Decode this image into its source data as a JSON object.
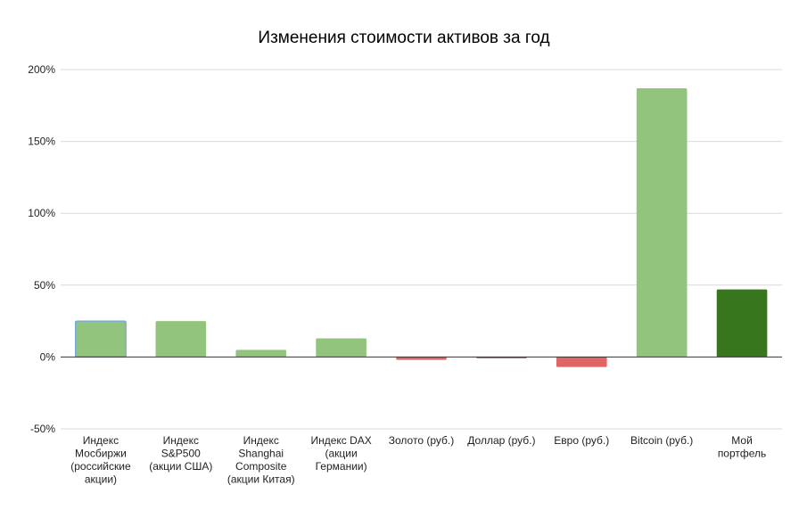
{
  "chart_data": {
    "type": "bar",
    "title": "Изменения стоимости активов за год",
    "xlabel": "",
    "ylabel": "",
    "ylim": [
      -50,
      200
    ],
    "yticks": [
      -50,
      0,
      50,
      100,
      150,
      200
    ],
    "ytick_labels": [
      "-50%",
      "0%",
      "50%",
      "100%",
      "150%",
      "200%"
    ],
    "grid": true,
    "legend": "none",
    "categories": [
      [
        "Индекс",
        "Мосбиржи",
        "(российские",
        "акции)"
      ],
      [
        "Индекс",
        "S&P500",
        "(акции США)"
      ],
      [
        "Индекс",
        "Shanghai",
        "Composite",
        "(акции Китая)"
      ],
      [
        "Индекс DAX",
        "(акции",
        "Германии)"
      ],
      [
        "Золото (руб.)"
      ],
      [
        "Доллар (руб.)"
      ],
      [
        "Евро (руб.)"
      ],
      [
        "Bitcoin (руб.)"
      ],
      [
        "Мой",
        "портфель"
      ]
    ],
    "values": [
      25,
      25,
      5,
      13,
      -2,
      -1,
      -7,
      187,
      47
    ],
    "colors": [
      "#93c47d",
      "#93c47d",
      "#93c47d",
      "#93c47d",
      "#e06666",
      "#e06666",
      "#e06666",
      "#93c47d",
      "#38761d"
    ],
    "highlight_border_color": "#6fa8dc"
  }
}
